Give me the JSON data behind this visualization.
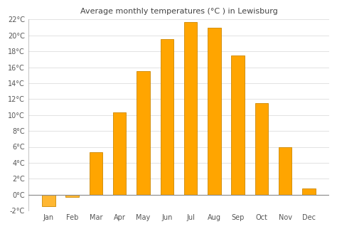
{
  "title": "Average monthly temperatures (°C ) in Lewisburg",
  "months": [
    "Jan",
    "Feb",
    "Mar",
    "Apr",
    "May",
    "Jun",
    "Jul",
    "Aug",
    "Sep",
    "Oct",
    "Nov",
    "Dec"
  ],
  "values": [
    -1.5,
    -0.3,
    5.3,
    10.3,
    15.5,
    19.5,
    21.7,
    21.0,
    17.5,
    11.5,
    6.0,
    0.8
  ],
  "bar_color_pos": "#FFA500",
  "bar_color_neg": "#FFB732",
  "bar_edge_color": "#CC8800",
  "ylim": [
    -2,
    22
  ],
  "yticks": [
    -2,
    0,
    2,
    4,
    6,
    8,
    10,
    12,
    14,
    16,
    18,
    20,
    22
  ],
  "background_color": "#ffffff",
  "grid_color": "#dddddd",
  "title_fontsize": 8,
  "tick_fontsize": 7
}
